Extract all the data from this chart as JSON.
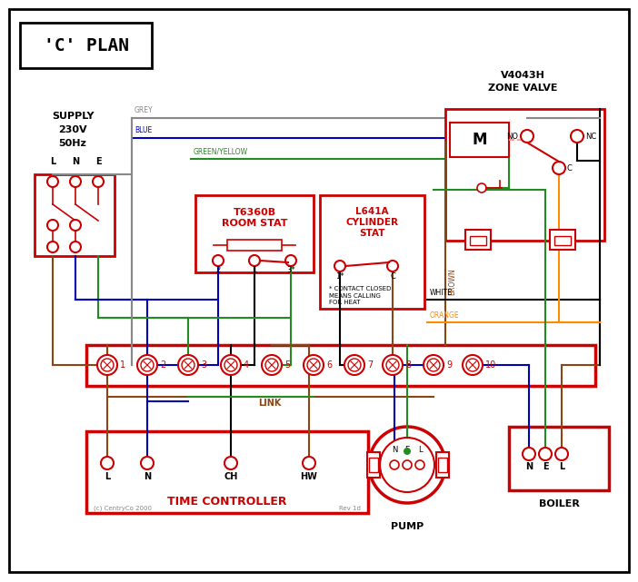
{
  "title": "'C' PLAN",
  "bg_color": "#ffffff",
  "red": "#cc0000",
  "black": "#000000",
  "blue": "#0000bb",
  "brown": "#8B4513",
  "green": "#228B22",
  "grey": "#888888",
  "orange": "#FF8C00",
  "pink": "#ff8888",
  "supply_text": "SUPPLY\n230V\n50Hz",
  "zone_valve_title": "V4043H\nZONE VALVE",
  "room_stat_title": "T6360B\nROOM STAT",
  "cyl_stat_title": "L641A\nCYLINDER\nSTAT",
  "time_controller_title": "TIME CONTROLLER",
  "pump_title": "PUMP",
  "boiler_title": "BOILER",
  "link_label": "LINK",
  "copyright": "(c) CentryCo 2000",
  "revision": "Rev 1d"
}
